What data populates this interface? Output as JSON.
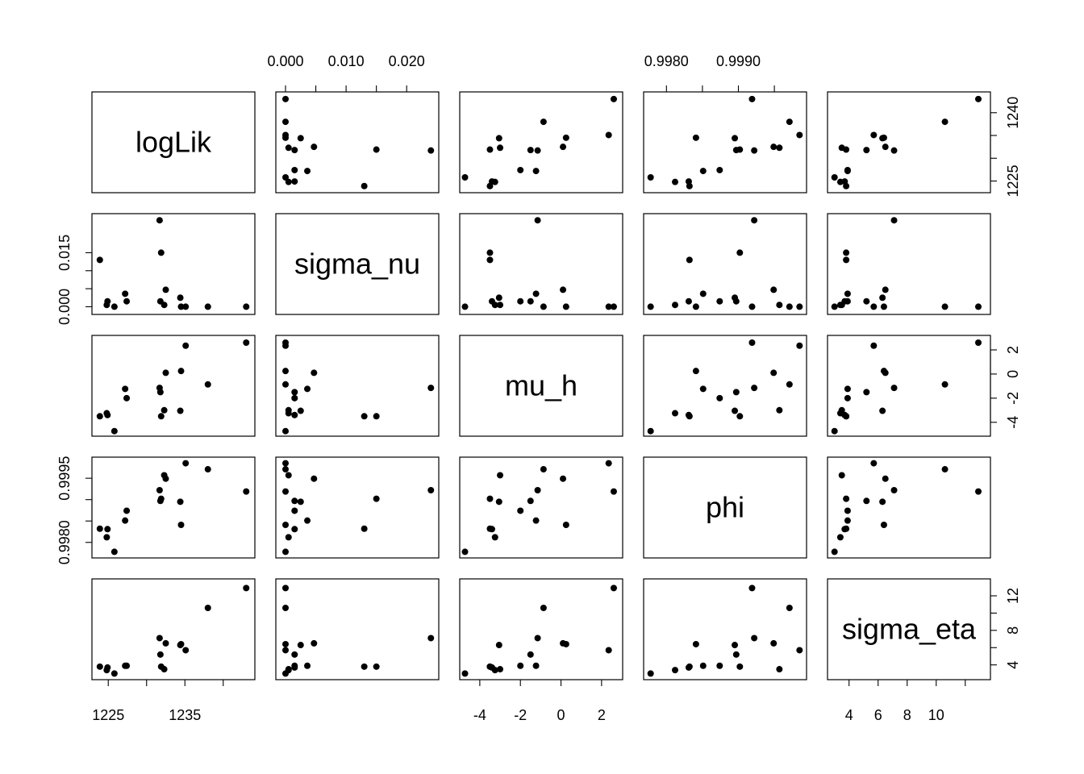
{
  "chart_data": {
    "type": "scatter",
    "plot_kind": "scatterplot-matrix",
    "title": "",
    "point_color": "#000000",
    "variables": [
      {
        "name": "logLik",
        "lim": [
          1223.5,
          1243.5
        ],
        "ticks": [
          1225,
          1235
        ],
        "tick_labels": [
          "1225",
          "1235"
        ],
        "minor_ticks": [
          1230,
          1240
        ],
        "right_ticks": [
          1225,
          1240
        ],
        "right_tick_labels": [
          "1225",
          "1240"
        ],
        "right_minor_ticks": [
          1230,
          1235
        ]
      },
      {
        "name": "sigma_nu",
        "lim": [
          -0.0008,
          0.0245
        ],
        "ticks": [
          0.0,
          0.01,
          0.02
        ],
        "tick_labels": [
          "0.000",
          "0.010",
          "0.020"
        ],
        "minor_ticks": [
          0.005,
          0.015
        ],
        "left_ticks": [
          0.0,
          0.015
        ],
        "left_tick_labels": [
          "0.000",
          "0.015"
        ],
        "left_minor_ticks": [
          0.005,
          0.01
        ]
      },
      {
        "name": "mu_h",
        "lim": [
          -4.75,
          2.8
        ],
        "ticks": [
          -4,
          -2,
          0,
          2
        ],
        "tick_labels": [
          "-4",
          "-2",
          "0",
          "2"
        ],
        "minor_ticks": []
      },
      {
        "name": "phi",
        "lim": [
          0.99775,
          0.99988
        ],
        "ticks": [
          0.998,
          0.999
        ],
        "tick_labels": [
          "0.9980",
          "0.9990"
        ],
        "minor_ticks": [
          0.9985,
          0.9995
        ],
        "left_ticks": [
          0.998,
          0.9995
        ],
        "left_tick_labels": [
          "0.9980",
          "0.9995"
        ],
        "left_minor_ticks": [
          0.9985,
          0.999
        ]
      },
      {
        "name": "sigma_eta",
        "lim": [
          2.85,
          13.4
        ],
        "ticks": [
          4,
          6,
          8,
          10
        ],
        "tick_labels": [
          "4",
          "6",
          "8",
          "10"
        ],
        "minor_ticks": [
          12
        ],
        "right_ticks": [
          4,
          8,
          12
        ],
        "right_tick_labels": [
          "4",
          "8",
          "12"
        ],
        "right_minor_ticks": [
          6,
          10
        ]
      }
    ],
    "observations": [
      [
        1225.8,
        0.0,
        -4.73,
        0.99778,
        3.0
      ],
      [
        1224.8,
        0.0005,
        -3.25,
        0.99812,
        3.4
      ],
      [
        1224.9,
        0.0015,
        -3.4,
        0.99831,
        3.7
      ],
      [
        1227.2,
        0.0036,
        -1.23,
        0.99851,
        3.9
      ],
      [
        1223.9,
        0.013,
        -3.5,
        0.99832,
        3.8
      ],
      [
        1227.4,
        0.0015,
        -2.0,
        0.99874,
        3.9
      ],
      [
        1234.4,
        0.0025,
        -3.05,
        0.99895,
        6.3
      ],
      [
        1234.5,
        0.0,
        0.25,
        0.99841,
        6.4
      ],
      [
        1238.0,
        0.0,
        -0.86,
        0.99971,
        10.6
      ],
      [
        1231.8,
        0.0015,
        -1.5,
        0.99897,
        5.2
      ],
      [
        1232.3,
        0.0005,
        -3.0,
        0.99957,
        3.5
      ],
      [
        1243.0,
        0.0,
        2.6,
        0.99919,
        12.9
      ],
      [
        1235.1,
        0.0,
        2.35,
        0.99985,
        5.7
      ],
      [
        1232.5,
        0.0047,
        0.1,
        0.99949,
        6.5
      ],
      [
        1231.9,
        0.015,
        -3.5,
        0.99902,
        3.8
      ],
      [
        1231.7,
        0.024,
        -1.15,
        0.99922,
        7.1
      ]
    ]
  }
}
